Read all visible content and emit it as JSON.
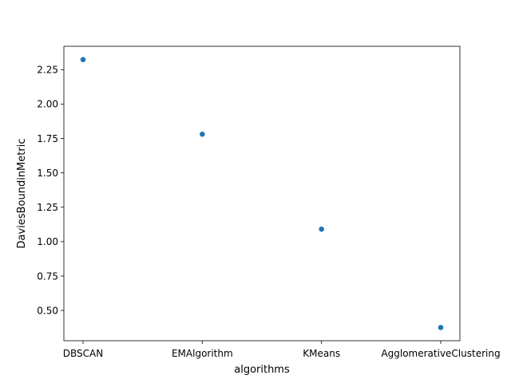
{
  "chart_data": {
    "type": "scatter",
    "title": "",
    "xlabel": "algorithms",
    "ylabel": "DaviesBoundinMetric",
    "categories": [
      "DBSCAN",
      "EMAlgorithm",
      "KMeans",
      "AgglomerativeClustering"
    ],
    "values": [
      2.323,
      1.781,
      1.091,
      0.376
    ],
    "ylim": [
      0.28,
      2.42
    ],
    "yticks": [
      "0.50",
      "0.75",
      "1.00",
      "1.25",
      "1.50",
      "1.75",
      "2.00",
      "2.25"
    ],
    "grid": false,
    "legend": "none",
    "point_color": "#1f77b4"
  }
}
